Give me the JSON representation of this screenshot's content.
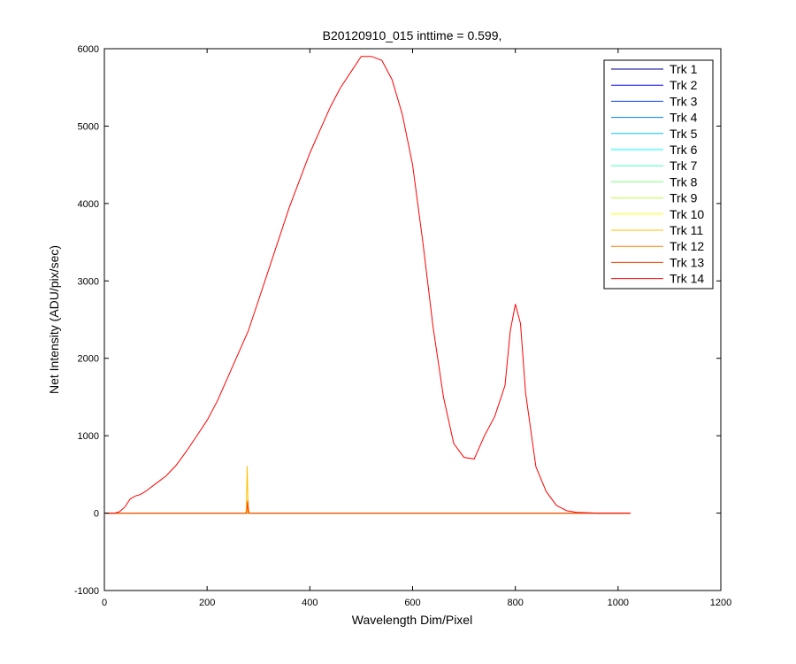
{
  "chart_data": {
    "type": "line",
    "title": "B20120910_015 inttime = 0.599,",
    "xlabel": "Wavelength Dim/Pixel",
    "ylabel": "Net Intensity (ADU/pix/sec)",
    "xlim": [
      0,
      1200
    ],
    "ylim": [
      -1000,
      6000
    ],
    "xticks": [
      0,
      200,
      400,
      600,
      800,
      1000,
      1200
    ],
    "yticks": [
      -1000,
      0,
      1000,
      2000,
      3000,
      4000,
      5000,
      6000
    ],
    "grid": false,
    "legend_position": "top-right",
    "series": [
      {
        "name": "Trk 1",
        "color": "#00008f",
        "x": [
          0,
          1024
        ],
        "y": [
          0,
          0
        ]
      },
      {
        "name": "Trk 2",
        "color": "#0000ff",
        "x": [
          0,
          1024
        ],
        "y": [
          0,
          0
        ]
      },
      {
        "name": "Trk 3",
        "color": "#0040ff",
        "x": [
          0,
          1024
        ],
        "y": [
          0,
          0
        ]
      },
      {
        "name": "Trk 4",
        "color": "#0080ff",
        "x": [
          0,
          1024
        ],
        "y": [
          0,
          0
        ]
      },
      {
        "name": "Trk 5",
        "color": "#00c0ff",
        "x": [
          0,
          1024
        ],
        "y": [
          0,
          0
        ]
      },
      {
        "name": "Trk 6",
        "color": "#00ffff",
        "x": [
          0,
          1024
        ],
        "y": [
          0,
          0
        ]
      },
      {
        "name": "Trk 7",
        "color": "#40ffc0",
        "x": [
          0,
          1024
        ],
        "y": [
          0,
          0
        ]
      },
      {
        "name": "Trk 8",
        "color": "#80ff80",
        "x": [
          0,
          1024
        ],
        "y": [
          0,
          0
        ]
      },
      {
        "name": "Trk 9",
        "color": "#c0ff40",
        "x": [
          0,
          1024
        ],
        "y": [
          0,
          0
        ]
      },
      {
        "name": "Trk 10",
        "color": "#ffff00",
        "x": [
          0,
          275,
          278,
          281,
          1024
        ],
        "y": [
          0,
          0,
          150,
          0,
          0
        ]
      },
      {
        "name": "Trk 11",
        "color": "#ffc000",
        "x": [
          0,
          276,
          278,
          280,
          1024
        ],
        "y": [
          0,
          0,
          610,
          0,
          0
        ]
      },
      {
        "name": "Trk 12",
        "color": "#ff8000",
        "x": [
          0,
          276,
          279,
          282,
          1024
        ],
        "y": [
          0,
          0,
          120,
          0,
          0
        ]
      },
      {
        "name": "Trk 13",
        "color": "#ff4000",
        "x": [
          0,
          277,
          279,
          281,
          1024
        ],
        "y": [
          0,
          0,
          160,
          0,
          0
        ]
      },
      {
        "name": "Trk 14",
        "color": "#ff0000",
        "x": [
          0,
          20,
          30,
          40,
          50,
          60,
          70,
          80,
          100,
          120,
          140,
          160,
          180,
          200,
          220,
          240,
          260,
          280,
          300,
          320,
          340,
          360,
          380,
          400,
          420,
          440,
          460,
          480,
          500,
          520,
          540,
          560,
          580,
          600,
          620,
          640,
          660,
          680,
          700,
          720,
          740,
          760,
          780,
          790,
          800,
          810,
          820,
          840,
          860,
          880,
          900,
          920,
          940,
          960,
          1000,
          1024
        ],
        "y": [
          0,
          0,
          20,
          80,
          180,
          220,
          240,
          280,
          380,
          480,
          620,
          800,
          1000,
          1200,
          1450,
          1750,
          2050,
          2350,
          2750,
          3150,
          3550,
          3950,
          4300,
          4650,
          4950,
          5250,
          5500,
          5700,
          5900,
          5900,
          5850,
          5600,
          5150,
          4500,
          3500,
          2400,
          1500,
          900,
          720,
          700,
          1000,
          1250,
          1650,
          2350,
          2700,
          2450,
          1550,
          600,
          280,
          100,
          30,
          10,
          5,
          0,
          0,
          0
        ]
      }
    ]
  }
}
